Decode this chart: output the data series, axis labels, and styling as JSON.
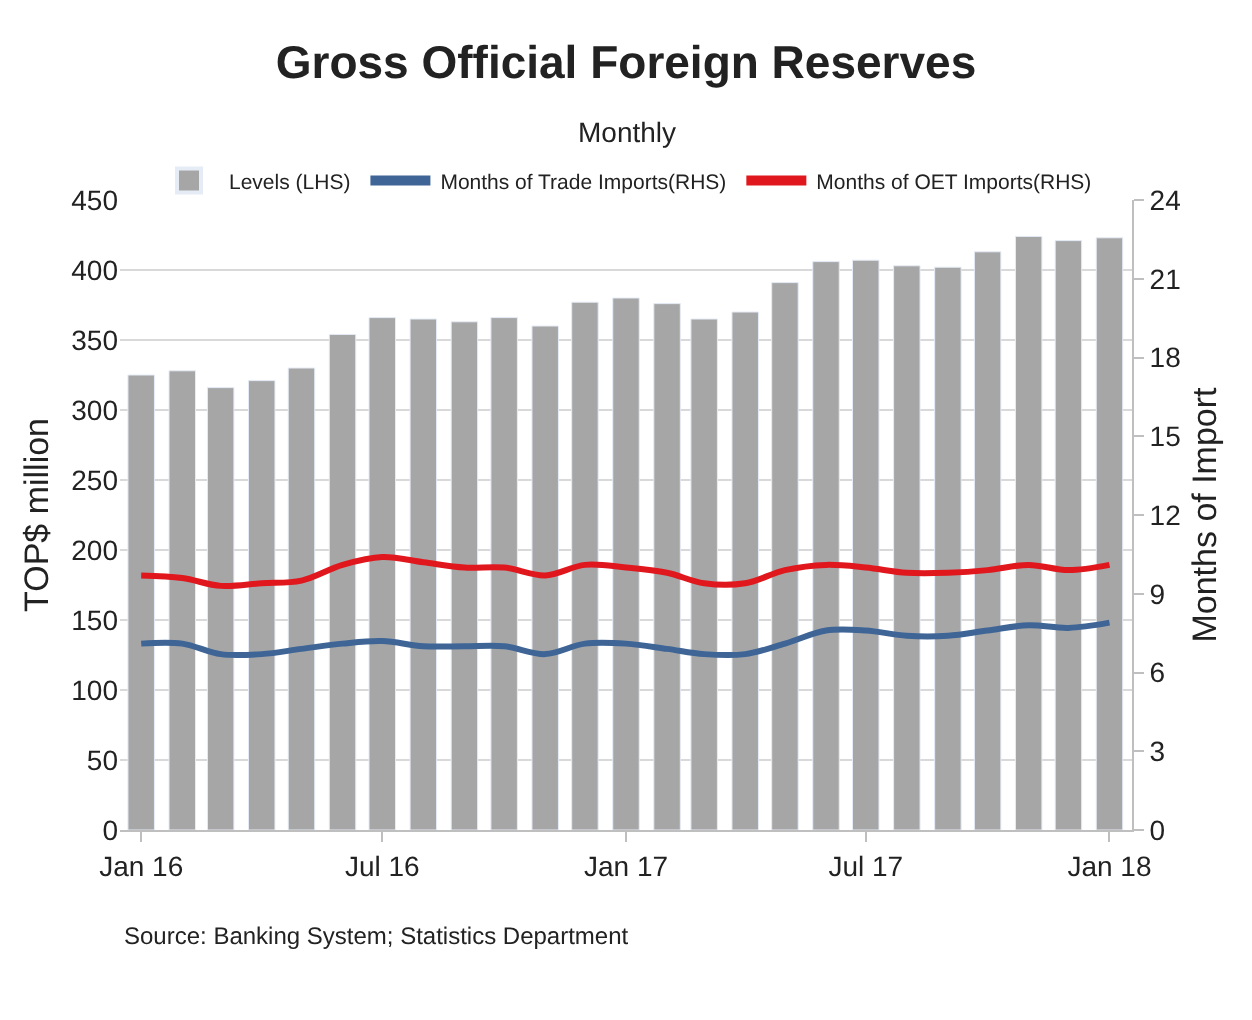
{
  "chart_data": {
    "type": "bar",
    "title": "Gross Official Foreign Reserves",
    "subtitle": "Monthly",
    "ylabel": "TOP$ million",
    "y2label": "Months of Import",
    "x": [
      "2016-01",
      "2016-02",
      "2016-03",
      "2016-04",
      "2016-05",
      "2016-06",
      "2016-07",
      "2016-08",
      "2016-09",
      "2016-10",
      "2016-11",
      "2016-12",
      "2017-01",
      "2017-02",
      "2017-03",
      "2017-04",
      "2017-05",
      "2017-06",
      "2017-07",
      "2017-08",
      "2017-09",
      "2017-10",
      "2017-11",
      "2017-12",
      "2018-01"
    ],
    "series": [
      {
        "name": "Levels (LHS)",
        "color": "#a6a6a6",
        "values": [
          325,
          328,
          316,
          321,
          330,
          354,
          366,
          365,
          363,
          366,
          360,
          377,
          380,
          376,
          365,
          370,
          391,
          406,
          407,
          403,
          402,
          413,
          424,
          421,
          423
        ]
      },
      {
        "name": "Months of Trade Imports(RHS)",
        "type": "line",
        "axis": "y2",
        "color": "#3e6596",
        "values": [
          7.1,
          7.1,
          6.7,
          6.7,
          6.9,
          7.1,
          7.2,
          7.0,
          7.0,
          7.0,
          6.7,
          7.1,
          7.1,
          6.9,
          6.7,
          6.7,
          7.1,
          7.6,
          7.6,
          7.4,
          7.4,
          7.6,
          7.8,
          7.7,
          7.9
        ]
      },
      {
        "name": "Months of OET Imports(RHS)",
        "type": "line",
        "axis": "y2",
        "color": "#e0171d",
        "values": [
          9.7,
          9.6,
          9.3,
          9.4,
          9.5,
          10.1,
          10.4,
          10.2,
          10.0,
          10.0,
          9.7,
          10.1,
          10.0,
          9.8,
          9.4,
          9.4,
          9.9,
          10.1,
          10.0,
          9.8,
          9.8,
          9.9,
          10.1,
          9.9,
          10.1
        ]
      }
    ],
    "xlim": [
      "2015-12-16",
      "2018-01-18"
    ],
    "xticks": [
      {
        "value": "2016-01",
        "label": "Jan 16"
      },
      {
        "value": "2016-07",
        "label": "Jul 16"
      },
      {
        "value": "2017-01",
        "label": "Jan 17"
      },
      {
        "value": "2017-07",
        "label": "Jul 17"
      },
      {
        "value": "2018-01",
        "label": "Jan 18"
      }
    ],
    "ylim": [
      0,
      450
    ],
    "yticks": [
      0,
      50,
      100,
      150,
      200,
      250,
      300,
      350,
      400,
      450
    ],
    "y2lim": [
      0,
      24
    ],
    "y2ticks": [
      0,
      3,
      6,
      9,
      12,
      15,
      18,
      21,
      24
    ],
    "grid": "y",
    "legend": "top",
    "marker": "none",
    "line_style": "solid",
    "annotations": [
      "Source: Banking System; Statistics Department"
    ]
  }
}
